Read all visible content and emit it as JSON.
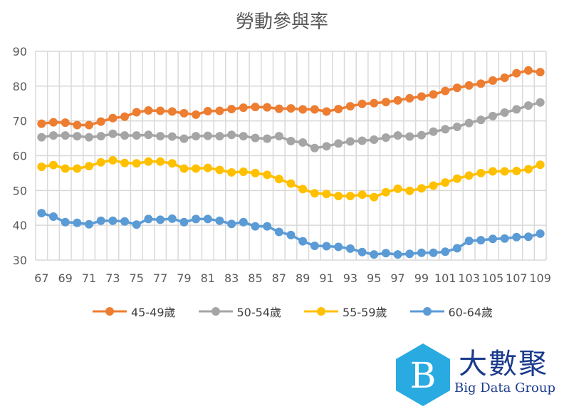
{
  "chart_data": {
    "type": "line",
    "title": "勞動參與率",
    "x": [
      67,
      68,
      69,
      70,
      71,
      72,
      73,
      74,
      75,
      76,
      77,
      78,
      79,
      80,
      81,
      82,
      83,
      84,
      85,
      86,
      87,
      88,
      89,
      90,
      91,
      92,
      93,
      94,
      95,
      96,
      97,
      98,
      99,
      100,
      101,
      102,
      103,
      104,
      105,
      106,
      107,
      108,
      109
    ],
    "x_tick_labels": [
      "67",
      "69",
      "71",
      "73",
      "75",
      "77",
      "79",
      "81",
      "83",
      "85",
      "87",
      "89",
      "91",
      "93",
      "95",
      "97",
      "99",
      "101",
      "103",
      "105",
      "107",
      "109"
    ],
    "ylim": [
      30,
      90
    ],
    "y_ticks": [
      30,
      40,
      50,
      60,
      70,
      80,
      90
    ],
    "grid": true,
    "legend_position": "bottom",
    "series": [
      {
        "name": "45-49歲",
        "color": "#ED7D31",
        "values": [
          69.2,
          69.6,
          69.5,
          68.8,
          68.8,
          69.8,
          70.8,
          71.2,
          72.5,
          73,
          72.9,
          72.7,
          72.2,
          71.8,
          72.8,
          72.9,
          73.4,
          73.8,
          74,
          73.9,
          73.5,
          73.6,
          73.3,
          73.3,
          72.7,
          73.4,
          74.2,
          74.9,
          75.1,
          75.4,
          75.9,
          76.5,
          77,
          77.6,
          78.6,
          79.5,
          80.2,
          80.7,
          81.6,
          82.4,
          83.7,
          84.5,
          84
        ]
      },
      {
        "name": "50-54歲",
        "color": "#A5A5A5",
        "values": [
          65.3,
          65.8,
          65.8,
          65.6,
          65.3,
          65.6,
          66.3,
          65.8,
          65.8,
          66,
          65.6,
          65.5,
          64.9,
          65.6,
          65.7,
          65.6,
          66,
          65.6,
          65.1,
          64.9,
          65.6,
          64.2,
          63.8,
          62.2,
          62.7,
          63.5,
          64.1,
          64.3,
          64.6,
          65.2,
          65.8,
          65.5,
          65.9,
          66.9,
          67.6,
          68.3,
          69.4,
          70.3,
          71.4,
          72.4,
          73.3,
          74.4,
          75.3
        ]
      },
      {
        "name": "55-59歲",
        "color": "#FFC000",
        "values": [
          56.8,
          57.3,
          56.3,
          56.3,
          57,
          58.1,
          58.7,
          57.9,
          57.8,
          58.3,
          58.3,
          57.8,
          56.3,
          56.3,
          56.5,
          55.9,
          55.2,
          55.4,
          55,
          54.5,
          53.3,
          52,
          50.4,
          49.2,
          49,
          48.4,
          48.4,
          48.8,
          48.1,
          49.5,
          50.5,
          49.9,
          50.6,
          51.4,
          52.3,
          53.4,
          54.3,
          55,
          55.5,
          55.5,
          55.6,
          56.1,
          57.4
        ]
      },
      {
        "name": "60-64歲",
        "color": "#5B9BD5",
        "values": [
          43.5,
          42.5,
          40.9,
          40.7,
          40.3,
          41.3,
          41.3,
          41.1,
          40.2,
          41.8,
          41.6,
          41.9,
          40.9,
          41.8,
          41.8,
          41.3,
          40.4,
          40.9,
          39.7,
          39.7,
          38.1,
          37.2,
          35.4,
          34.1,
          34,
          33.8,
          33.3,
          32.3,
          31.6,
          32,
          31.6,
          31.8,
          32.1,
          32.1,
          32.4,
          33.4,
          35.5,
          35.7,
          36.1,
          36.2,
          36.6,
          36.7,
          37.6
        ]
      }
    ]
  },
  "logo": {
    "name_cn": "大數聚",
    "name_en": "Big Data Group",
    "letter": "B",
    "color": "#29ABE2"
  }
}
